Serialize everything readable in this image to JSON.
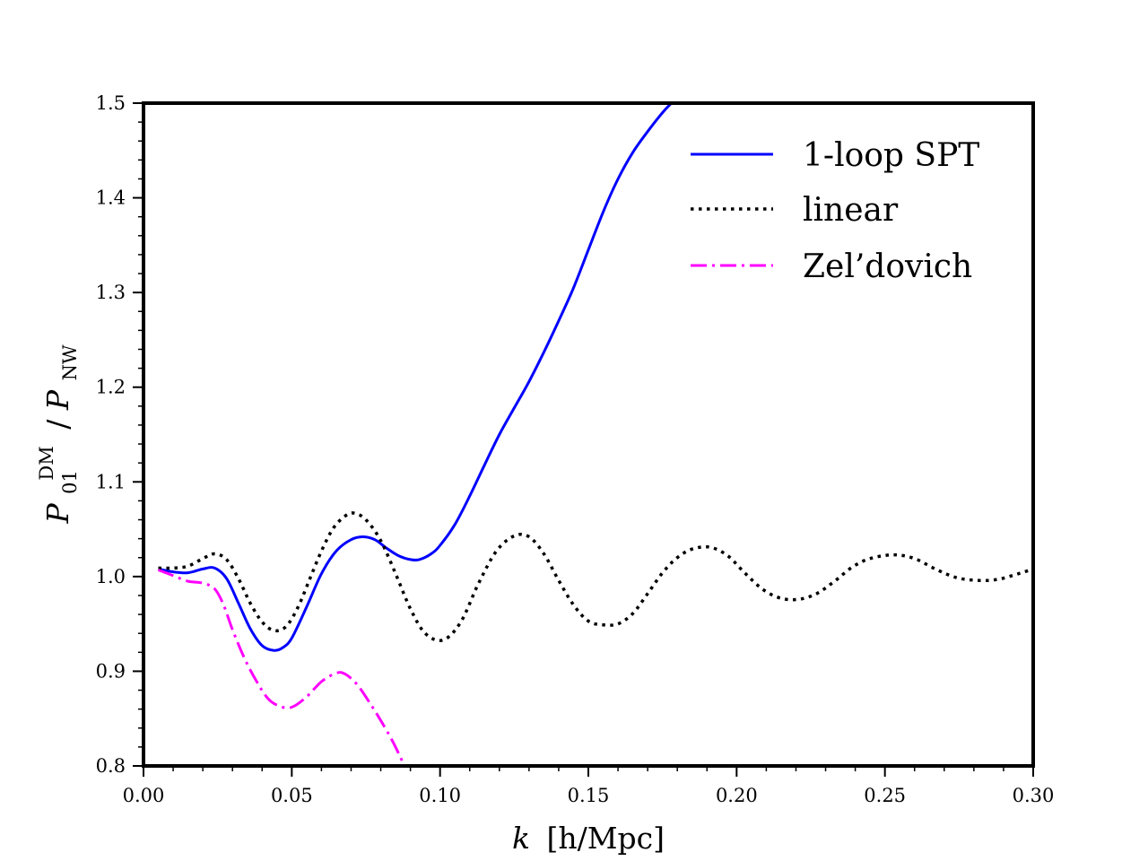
{
  "chart_data": {
    "type": "line",
    "xlabel": {
      "var": "k",
      "unit": "[h/Mpc]",
      "text": "k [h/Mpc]"
    },
    "ylabel": {
      "text": "P_01^DM / P_NW",
      "base": "P",
      "sub": "01",
      "sup": "DM",
      "slash": "/",
      "base2": "P",
      "sub2": "NW"
    },
    "xlim": [
      0.0,
      0.3
    ],
    "ylim": [
      0.8,
      1.5
    ],
    "xticks": [
      0.0,
      0.05,
      0.1,
      0.15,
      0.2,
      0.25,
      0.3
    ],
    "xtick_labels": [
      "0.00",
      "0.05",
      "0.10",
      "0.15",
      "0.20",
      "0.25",
      "0.30"
    ],
    "yticks": [
      0.8,
      0.9,
      1.0,
      1.1,
      1.2,
      1.3,
      1.4,
      1.5
    ],
    "ytick_labels": [
      "0.8",
      "0.9",
      "1.0",
      "1.1",
      "1.2",
      "1.3",
      "1.4",
      "1.5"
    ],
    "grid": false,
    "legend_position": "top-right",
    "series": [
      {
        "name": "1-loop SPT",
        "color": "#0000ff",
        "style": "solid",
        "x": [
          0.005,
          0.01,
          0.015,
          0.02,
          0.024,
          0.028,
          0.032,
          0.036,
          0.04,
          0.044,
          0.047,
          0.05,
          0.055,
          0.06,
          0.065,
          0.07,
          0.074,
          0.078,
          0.082,
          0.086,
          0.09,
          0.093,
          0.097,
          0.1,
          0.105,
          0.11,
          0.115,
          0.12,
          0.125,
          0.13,
          0.135,
          0.14,
          0.145,
          0.15,
          0.155,
          0.16,
          0.165,
          0.17,
          0.175,
          0.178
        ],
        "y": [
          1.008,
          1.005,
          1.004,
          1.008,
          1.009,
          0.998,
          0.972,
          0.945,
          0.927,
          0.922,
          0.925,
          0.935,
          0.968,
          1.003,
          1.027,
          1.039,
          1.042,
          1.039,
          1.03,
          1.022,
          1.018,
          1.018,
          1.024,
          1.033,
          1.055,
          1.085,
          1.118,
          1.15,
          1.178,
          1.206,
          1.237,
          1.27,
          1.305,
          1.345,
          1.385,
          1.42,
          1.448,
          1.47,
          1.49,
          1.5
        ]
      },
      {
        "name": "linear",
        "color": "#000000",
        "style": "dotted",
        "x": [
          0.005,
          0.01,
          0.015,
          0.02,
          0.024,
          0.028,
          0.032,
          0.036,
          0.04,
          0.044,
          0.048,
          0.052,
          0.056,
          0.06,
          0.064,
          0.068,
          0.071,
          0.075,
          0.08,
          0.085,
          0.09,
          0.095,
          0.101,
          0.107,
          0.113,
          0.119,
          0.125,
          0.13,
          0.135,
          0.14,
          0.145,
          0.15,
          0.155,
          0.16,
          0.165,
          0.17,
          0.175,
          0.18,
          0.185,
          0.191,
          0.197,
          0.203,
          0.209,
          0.215,
          0.221,
          0.227,
          0.233,
          0.239,
          0.245,
          0.253,
          0.26,
          0.267,
          0.274,
          0.281,
          0.288,
          0.295,
          0.3
        ],
        "y": [
          1.009,
          1.009,
          1.011,
          1.019,
          1.024,
          1.018,
          0.998,
          0.972,
          0.952,
          0.943,
          0.947,
          0.967,
          0.997,
          1.027,
          1.051,
          1.064,
          1.067,
          1.06,
          1.038,
          1.003,
          0.966,
          0.94,
          0.933,
          0.952,
          0.993,
          1.027,
          1.043,
          1.042,
          1.024,
          0.996,
          0.97,
          0.953,
          0.949,
          0.95,
          0.961,
          0.982,
          1.004,
          1.02,
          1.029,
          1.031,
          1.022,
          1.003,
          0.986,
          0.977,
          0.976,
          0.982,
          0.995,
          1.01,
          1.019,
          1.023,
          1.019,
          1.008,
          0.999,
          0.996,
          0.997,
          1.003,
          1.008
        ]
      },
      {
        "name": "Zel’dovich",
        "color": "#ff00ff",
        "style": "dashdot",
        "x": [
          0.005,
          0.01,
          0.015,
          0.02,
          0.024,
          0.027,
          0.03,
          0.034,
          0.038,
          0.042,
          0.046,
          0.05,
          0.055,
          0.06,
          0.065,
          0.068,
          0.072,
          0.076,
          0.08,
          0.084,
          0.088
        ],
        "y": [
          1.007,
          1.001,
          0.995,
          0.993,
          0.987,
          0.97,
          0.944,
          0.914,
          0.89,
          0.871,
          0.863,
          0.862,
          0.873,
          0.889,
          0.898,
          0.897,
          0.886,
          0.868,
          0.848,
          0.826,
          0.8
        ]
      }
    ]
  }
}
